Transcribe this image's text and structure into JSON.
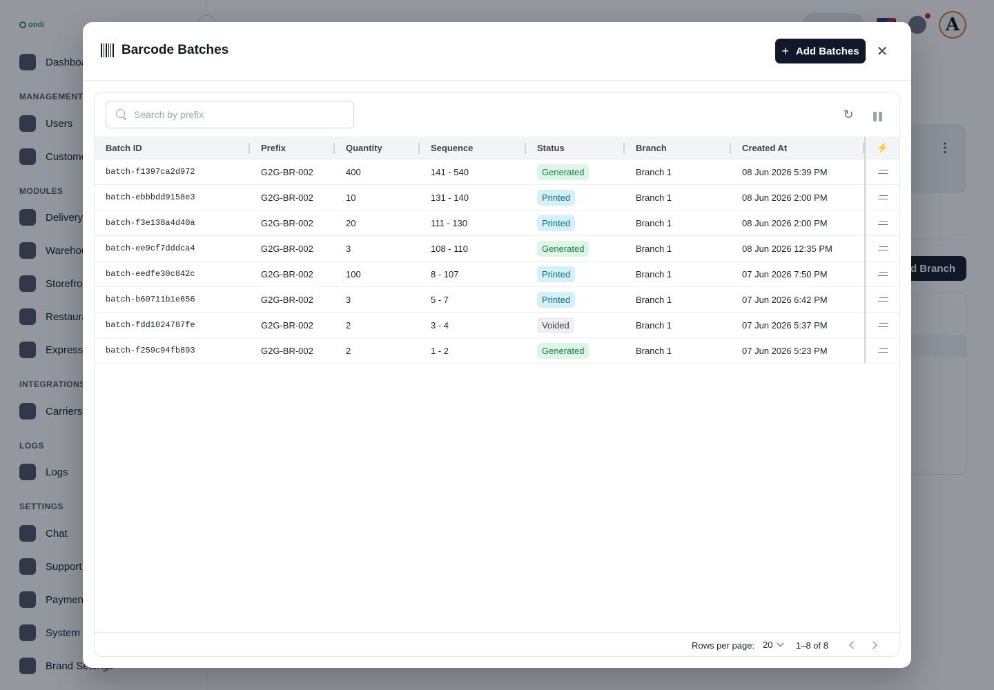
{
  "background": {
    "logo": "ondi",
    "nav": [
      {
        "type": "item",
        "label": "Dashboard",
        "icon": "dashboard-icon"
      },
      {
        "type": "section",
        "label": "MANAGEMENT"
      },
      {
        "type": "item",
        "label": "Users",
        "icon": "user-icon"
      },
      {
        "type": "item",
        "label": "Customers",
        "icon": "customers-icon"
      },
      {
        "type": "section",
        "label": "MODULES"
      },
      {
        "type": "item",
        "label": "Delivery",
        "icon": "truck-icon"
      },
      {
        "type": "item",
        "label": "Warehouse",
        "icon": "warehouse-icon"
      },
      {
        "type": "item",
        "label": "Storefront",
        "icon": "bag-icon"
      },
      {
        "type": "item",
        "label": "Restaurant",
        "icon": "restaurant-icon"
      },
      {
        "type": "item",
        "label": "Express",
        "icon": "box-icon"
      },
      {
        "type": "section",
        "label": "INTEGRATIONS"
      },
      {
        "type": "item",
        "label": "Carriers",
        "icon": "carriers-icon"
      },
      {
        "type": "section",
        "label": "LOGS"
      },
      {
        "type": "item",
        "label": "Logs",
        "icon": "logs-icon"
      },
      {
        "type": "section",
        "label": "SETTINGS"
      },
      {
        "type": "item",
        "label": "Chat",
        "icon": "chat-icon"
      },
      {
        "type": "item",
        "label": "Support",
        "icon": "support-icon"
      },
      {
        "type": "item",
        "label": "Payment",
        "icon": "payment-icon"
      },
      {
        "type": "item",
        "label": "System Settings",
        "icon": "system-settings-icon"
      },
      {
        "type": "item",
        "label": "Brand Settings",
        "icon": "brand-settings-icon"
      }
    ],
    "add_branch_label": "Add Branch"
  },
  "modal": {
    "title": "Barcode Batches",
    "title_icon": "barcode-icon",
    "add_button_label": "Add Batches",
    "search_placeholder": "Search by prefix",
    "columns": [
      "Batch ID",
      "Prefix",
      "Quantity",
      "Sequence",
      "Status",
      "Branch",
      "Created At"
    ],
    "rows": [
      {
        "batch_id": "batch-f1397ca2d972",
        "prefix": "G2G-BR-002",
        "quantity": "400",
        "sequence": "141 - 540",
        "status": "Generated",
        "branch": "Branch 1",
        "created_at": "08 Jun 2026 5:39 PM"
      },
      {
        "batch_id": "batch-ebbbdd9158e3",
        "prefix": "G2G-BR-002",
        "quantity": "10",
        "sequence": "131 - 140",
        "status": "Printed",
        "branch": "Branch 1",
        "created_at": "08 Jun 2026 2:00 PM"
      },
      {
        "batch_id": "batch-f3e138a4d40a",
        "prefix": "G2G-BR-002",
        "quantity": "20",
        "sequence": "111 - 130",
        "status": "Printed",
        "branch": "Branch 1",
        "created_at": "08 Jun 2026 2:00 PM"
      },
      {
        "batch_id": "batch-ee9cf7dddca4",
        "prefix": "G2G-BR-002",
        "quantity": "3",
        "sequence": "108 - 110",
        "status": "Generated",
        "branch": "Branch 1",
        "created_at": "08 Jun 2026 12:35 PM"
      },
      {
        "batch_id": "batch-eedfe30c842c",
        "prefix": "G2G-BR-002",
        "quantity": "100",
        "sequence": "8 - 107",
        "status": "Printed",
        "branch": "Branch 1",
        "created_at": "07 Jun 2026 7:50 PM"
      },
      {
        "batch_id": "batch-b60711b1e656",
        "prefix": "G2G-BR-002",
        "quantity": "3",
        "sequence": "5 - 7",
        "status": "Printed",
        "branch": "Branch 1",
        "created_at": "07 Jun 2026 6:42 PM"
      },
      {
        "batch_id": "batch-fdd1024787fe",
        "prefix": "G2G-BR-002",
        "quantity": "2",
        "sequence": "3 - 4",
        "status": "Voided",
        "branch": "Branch 1",
        "created_at": "07 Jun 2026 5:37 PM"
      },
      {
        "batch_id": "batch-f259c94fb893",
        "prefix": "G2G-BR-002",
        "quantity": "2",
        "sequence": "1 - 2",
        "status": "Generated",
        "branch": "Branch 1",
        "created_at": "07 Jun 2026 5:23 PM"
      }
    ],
    "pagination": {
      "rows_per_page_label": "Rows per page:",
      "rows_per_page_value": "20",
      "range_label": "1–8 of 8"
    }
  },
  "colors": {
    "primary_button": "#111827",
    "status_generated_bg": "#dcf5e6",
    "status_generated_fg": "#15803d",
    "status_printed_bg": "#d4f1f9",
    "status_printed_fg": "#0e6a85",
    "status_voided_bg": "#eceef0",
    "status_voided_fg": "#374151"
  }
}
